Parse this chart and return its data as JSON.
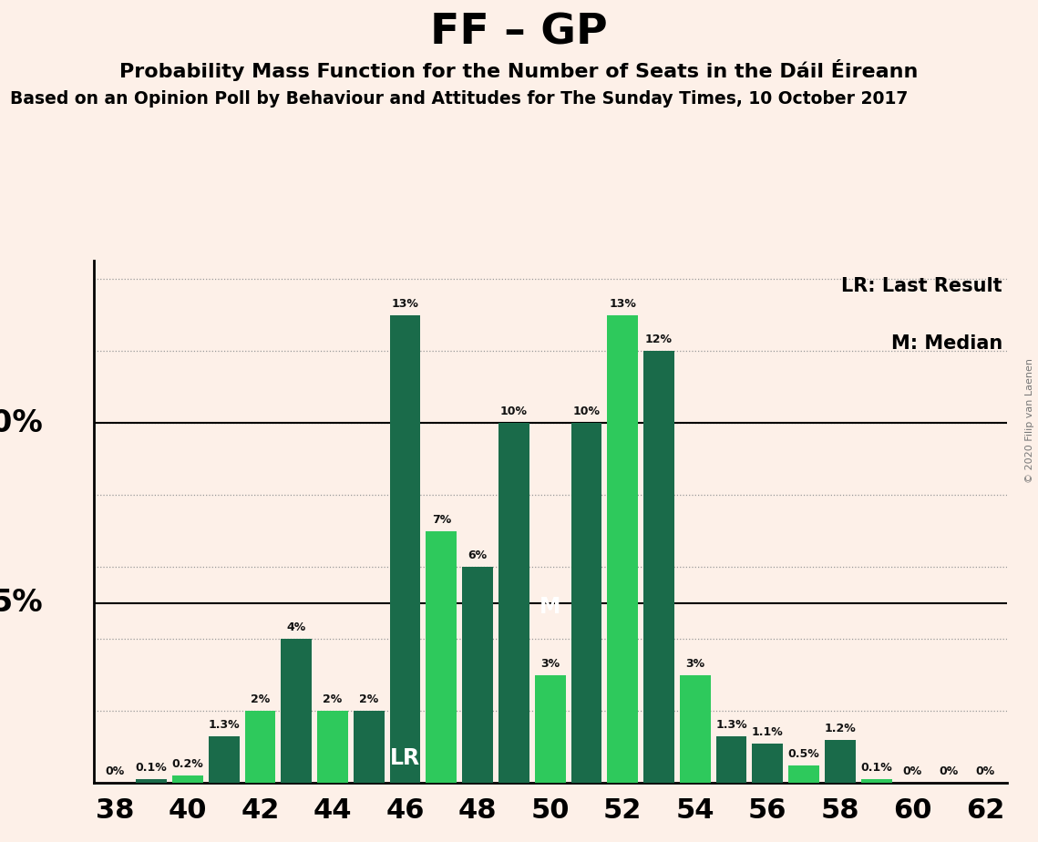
{
  "title": "FF – GP",
  "subtitle": "Probability Mass Function for the Number of Seats in the Dáil Éireann",
  "subtitle2": "Based on an Opinion Poll by Behaviour and Attitudes for The Sunday Times, 10 October 2017",
  "copyright": "© 2020 Filip van Laenen",
  "legend_lr": "LR: Last Result",
  "legend_m": "M: Median",
  "seats": [
    38,
    39,
    40,
    41,
    42,
    43,
    44,
    45,
    46,
    47,
    48,
    49,
    50,
    51,
    52,
    53,
    54,
    55,
    56,
    57,
    58,
    59,
    60,
    61,
    62
  ],
  "values": [
    0.0,
    0.1,
    0.2,
    1.3,
    2.0,
    4.0,
    2.0,
    2.0,
    13.0,
    7.0,
    6.0,
    10.0,
    3.0,
    10.0,
    13.0,
    12.0,
    3.0,
    1.3,
    1.1,
    0.5,
    1.2,
    0.1,
    0.0,
    0.0,
    0.0
  ],
  "bar_labels": [
    "0%",
    "0.1%",
    "0.2%",
    "1.3%",
    "2%",
    "4%",
    "2%",
    "2%",
    "13%",
    "7%",
    "6%",
    "10%",
    "3%",
    "10%",
    "13%",
    "12%",
    "3%",
    "1.3%",
    "1.1%",
    "0.5%",
    "1.2%",
    "0.1%",
    "0%",
    "0%",
    "0%"
  ],
  "bar_colors": [
    "#1a6b4a",
    "#1a6b4a",
    "#2ec95c",
    "#1a6b4a",
    "#2ec95c",
    "#1a6b4a",
    "#2ec95c",
    "#1a6b4a",
    "#1a6b4a",
    "#2ec95c",
    "#1a6b4a",
    "#1a6b4a",
    "#2ec95c",
    "#1a6b4a",
    "#2ec95c",
    "#1a6b4a",
    "#2ec95c",
    "#1a6b4a",
    "#1a6b4a",
    "#2ec95c",
    "#1a6b4a",
    "#2ec95c",
    "#1a6b4a",
    "#1a6b4a",
    "#1a6b4a"
  ],
  "lr_seat": 46,
  "median_seat": 50,
  "background_color": "#fdf0e8",
  "ylim": [
    0,
    14.5
  ],
  "dotted_lines": [
    2,
    4,
    6,
    8,
    10,
    12,
    14
  ],
  "solid_lines": [
    5.0,
    10.0
  ],
  "xlabel_ticks": [
    38,
    40,
    42,
    44,
    46,
    48,
    50,
    52,
    54,
    56,
    58,
    60,
    62
  ]
}
